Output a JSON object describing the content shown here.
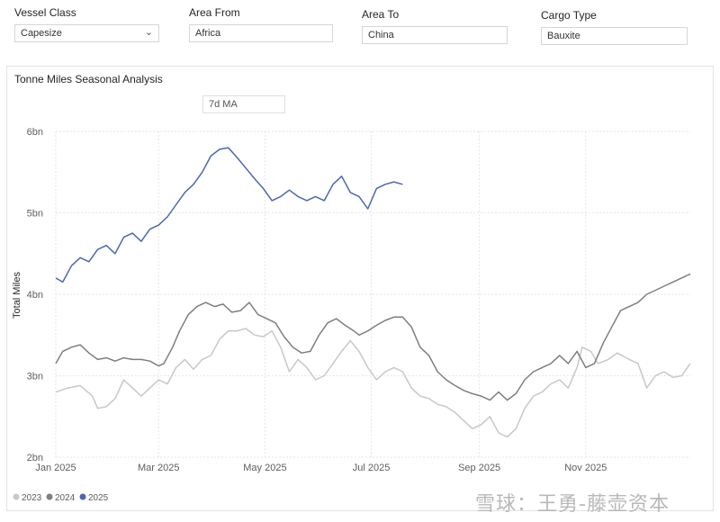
{
  "filters": [
    {
      "label": "Vessel Class",
      "value": "Capesize",
      "dropdown": true
    },
    {
      "label": "Area From",
      "value": "Africa",
      "dropdown": false
    },
    {
      "label": "Area To",
      "value": "China",
      "dropdown": false
    },
    {
      "label": "Cargo Type",
      "value": "Bauxite",
      "dropdown": false
    }
  ],
  "card": {
    "title": "Tonne Miles Seasonal Analysis",
    "ma_label": "7d MA"
  },
  "watermark": "雪球：王勇-藤壶资本",
  "chart_data": {
    "type": "line",
    "title": "Tonne Miles Seasonal Analysis",
    "ylabel": "Total Miles",
    "xlabel": "",
    "y_unit": "bn",
    "ylim": [
      2,
      6
    ],
    "yticks": [
      {
        "v": 2,
        "label": "2bn"
      },
      {
        "v": 3,
        "label": "3bn"
      },
      {
        "v": 4,
        "label": "4bn"
      },
      {
        "v": 5,
        "label": "5bn"
      },
      {
        "v": 6,
        "label": "6bn"
      }
    ],
    "x_day_range": [
      1,
      365
    ],
    "xticks": [
      {
        "day": 1,
        "label": "Jan 2025"
      },
      {
        "day": 60,
        "label": "Mar 2025"
      },
      {
        "day": 121,
        "label": "May 2025"
      },
      {
        "day": 182,
        "label": "Jul 2025"
      },
      {
        "day": 244,
        "label": "Sep 2025"
      },
      {
        "day": 305,
        "label": "Nov 2025"
      }
    ],
    "grid": true,
    "legend_position": "bottom-left",
    "series": [
      {
        "name": "2023",
        "color": "#c8c8c8",
        "points": [
          [
            1,
            2.8
          ],
          [
            8,
            2.85
          ],
          [
            15,
            2.88
          ],
          [
            22,
            2.75
          ],
          [
            25,
            2.6
          ],
          [
            30,
            2.62
          ],
          [
            35,
            2.72
          ],
          [
            40,
            2.95
          ],
          [
            45,
            2.85
          ],
          [
            50,
            2.75
          ],
          [
            55,
            2.85
          ],
          [
            60,
            2.95
          ],
          [
            65,
            2.9
          ],
          [
            70,
            3.1
          ],
          [
            75,
            3.2
          ],
          [
            80,
            3.08
          ],
          [
            85,
            3.2
          ],
          [
            90,
            3.25
          ],
          [
            95,
            3.45
          ],
          [
            100,
            3.55
          ],
          [
            105,
            3.55
          ],
          [
            110,
            3.58
          ],
          [
            115,
            3.5
          ],
          [
            120,
            3.48
          ],
          [
            125,
            3.55
          ],
          [
            130,
            3.35
          ],
          [
            135,
            3.05
          ],
          [
            140,
            3.2
          ],
          [
            145,
            3.1
          ],
          [
            150,
            2.95
          ],
          [
            155,
            3.0
          ],
          [
            160,
            3.15
          ],
          [
            165,
            3.3
          ],
          [
            170,
            3.43
          ],
          [
            175,
            3.3
          ],
          [
            180,
            3.1
          ],
          [
            185,
            2.95
          ],
          [
            190,
            3.05
          ],
          [
            195,
            3.1
          ],
          [
            200,
            3.05
          ],
          [
            205,
            2.85
          ],
          [
            210,
            2.75
          ],
          [
            215,
            2.72
          ],
          [
            220,
            2.65
          ],
          [
            225,
            2.62
          ],
          [
            230,
            2.55
          ],
          [
            235,
            2.45
          ],
          [
            240,
            2.35
          ],
          [
            245,
            2.4
          ],
          [
            250,
            2.5
          ],
          [
            255,
            2.3
          ],
          [
            260,
            2.25
          ],
          [
            265,
            2.35
          ],
          [
            270,
            2.6
          ],
          [
            275,
            2.75
          ],
          [
            280,
            2.8
          ],
          [
            285,
            2.9
          ],
          [
            290,
            2.95
          ],
          [
            295,
            2.85
          ],
          [
            300,
            3.1
          ],
          [
            303,
            3.35
          ],
          [
            308,
            3.3
          ],
          [
            312,
            3.15
          ],
          [
            318,
            3.2
          ],
          [
            323,
            3.28
          ],
          [
            330,
            3.2
          ],
          [
            335,
            3.15
          ],
          [
            340,
            2.85
          ],
          [
            345,
            3.0
          ],
          [
            350,
            3.05
          ],
          [
            355,
            2.98
          ],
          [
            360,
            3.0
          ],
          [
            365,
            3.15
          ]
        ]
      },
      {
        "name": "2024",
        "color": "#7f7f7f",
        "points": [
          [
            1,
            3.15
          ],
          [
            5,
            3.3
          ],
          [
            10,
            3.35
          ],
          [
            15,
            3.38
          ],
          [
            20,
            3.28
          ],
          [
            25,
            3.2
          ],
          [
            30,
            3.22
          ],
          [
            35,
            3.18
          ],
          [
            40,
            3.22
          ],
          [
            45,
            3.2
          ],
          [
            50,
            3.2
          ],
          [
            55,
            3.18
          ],
          [
            60,
            3.12
          ],
          [
            63,
            3.15
          ],
          [
            68,
            3.35
          ],
          [
            72,
            3.55
          ],
          [
            77,
            3.75
          ],
          [
            82,
            3.85
          ],
          [
            87,
            3.9
          ],
          [
            92,
            3.85
          ],
          [
            97,
            3.88
          ],
          [
            102,
            3.78
          ],
          [
            107,
            3.8
          ],
          [
            112,
            3.9
          ],
          [
            117,
            3.75
          ],
          [
            122,
            3.7
          ],
          [
            127,
            3.65
          ],
          [
            132,
            3.48
          ],
          [
            137,
            3.35
          ],
          [
            142,
            3.28
          ],
          [
            147,
            3.3
          ],
          [
            152,
            3.5
          ],
          [
            157,
            3.65
          ],
          [
            162,
            3.7
          ],
          [
            167,
            3.62
          ],
          [
            172,
            3.55
          ],
          [
            175,
            3.5
          ],
          [
            180,
            3.55
          ],
          [
            185,
            3.62
          ],
          [
            190,
            3.68
          ],
          [
            195,
            3.72
          ],
          [
            200,
            3.72
          ],
          [
            205,
            3.6
          ],
          [
            210,
            3.35
          ],
          [
            215,
            3.25
          ],
          [
            220,
            3.05
          ],
          [
            225,
            2.95
          ],
          [
            230,
            2.88
          ],
          [
            235,
            2.82
          ],
          [
            240,
            2.78
          ],
          [
            245,
            2.75
          ],
          [
            250,
            2.7
          ],
          [
            255,
            2.8
          ],
          [
            260,
            2.7
          ],
          [
            265,
            2.78
          ],
          [
            270,
            2.95
          ],
          [
            275,
            3.05
          ],
          [
            280,
            3.1
          ],
          [
            285,
            3.15
          ],
          [
            290,
            3.25
          ],
          [
            295,
            3.15
          ],
          [
            300,
            3.3
          ],
          [
            305,
            3.1
          ],
          [
            310,
            3.15
          ],
          [
            315,
            3.4
          ],
          [
            320,
            3.6
          ],
          [
            325,
            3.8
          ],
          [
            330,
            3.85
          ],
          [
            335,
            3.9
          ],
          [
            340,
            4.0
          ],
          [
            345,
            4.05
          ],
          [
            350,
            4.1
          ],
          [
            355,
            4.15
          ],
          [
            360,
            4.2
          ],
          [
            365,
            4.25
          ]
        ]
      },
      {
        "name": "2025",
        "color": "#4a68b0",
        "points": [
          [
            1,
            4.2
          ],
          [
            5,
            4.15
          ],
          [
            10,
            4.35
          ],
          [
            15,
            4.45
          ],
          [
            20,
            4.4
          ],
          [
            25,
            4.55
          ],
          [
            30,
            4.6
          ],
          [
            35,
            4.5
          ],
          [
            40,
            4.7
          ],
          [
            45,
            4.75
          ],
          [
            50,
            4.65
          ],
          [
            55,
            4.8
          ],
          [
            60,
            4.85
          ],
          [
            65,
            4.95
          ],
          [
            70,
            5.1
          ],
          [
            75,
            5.25
          ],
          [
            80,
            5.35
          ],
          [
            85,
            5.5
          ],
          [
            90,
            5.7
          ],
          [
            95,
            5.78
          ],
          [
            100,
            5.8
          ],
          [
            105,
            5.68
          ],
          [
            110,
            5.55
          ],
          [
            115,
            5.42
          ],
          [
            120,
            5.3
          ],
          [
            125,
            5.15
          ],
          [
            130,
            5.2
          ],
          [
            135,
            5.28
          ],
          [
            140,
            5.2
          ],
          [
            145,
            5.15
          ],
          [
            150,
            5.2
          ],
          [
            155,
            5.15
          ],
          [
            160,
            5.35
          ],
          [
            165,
            5.45
          ],
          [
            170,
            5.25
          ],
          [
            175,
            5.2
          ],
          [
            180,
            5.05
          ],
          [
            185,
            5.3
          ],
          [
            190,
            5.35
          ],
          [
            195,
            5.38
          ],
          [
            200,
            5.35
          ]
        ]
      }
    ]
  }
}
